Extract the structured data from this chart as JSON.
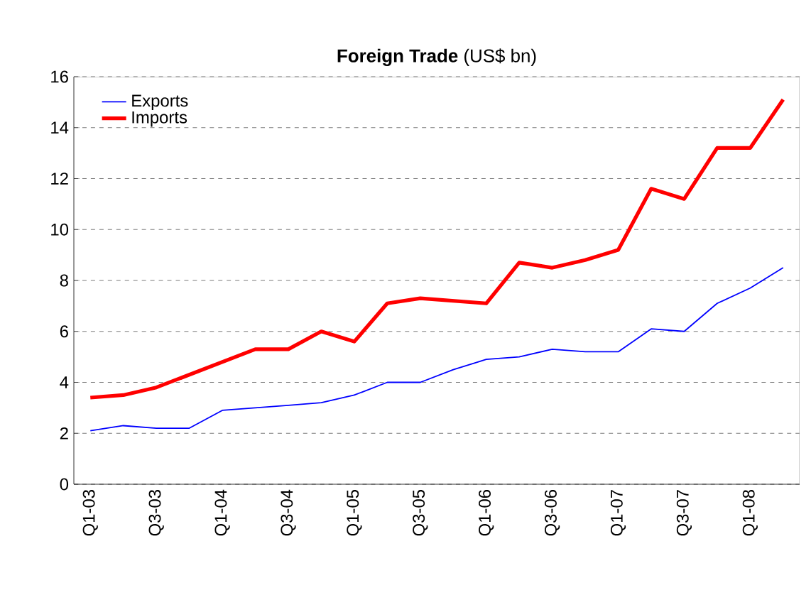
{
  "chart_data": {
    "type": "line",
    "title": "**Foreign Trade** (US$ bn)",
    "categories": [
      "Q1-03",
      null,
      "Q3-03",
      null,
      "Q1-04",
      null,
      "Q3-04",
      null,
      "Q1-05",
      null,
      "Q3-05",
      null,
      "Q1-06",
      null,
      "Q3-06",
      null,
      "Q1-07",
      null,
      "Q3-07",
      null,
      "Q1-08",
      null
    ],
    "series": [
      {
        "name": "Exports",
        "color": "#0000ff",
        "values": [
          2.1,
          2.3,
          2.2,
          2.2,
          2.9,
          3.0,
          3.1,
          3.2,
          3.5,
          4.0,
          4.0,
          4.5,
          4.9,
          5.0,
          5.3,
          5.2,
          5.2,
          6.1,
          6.0,
          7.1,
          7.7,
          8.5
        ]
      },
      {
        "name": "Imports",
        "color": "#ff0000",
        "values": [
          3.4,
          3.5,
          3.8,
          4.3,
          4.8,
          5.3,
          5.3,
          6.0,
          5.6,
          7.1,
          7.3,
          7.2,
          7.1,
          8.7,
          8.5,
          8.8,
          9.2,
          11.6,
          11.2,
          13.2,
          13.2,
          15.1
        ]
      }
    ],
    "ylim": [
      0,
      16
    ],
    "yticks": [
      0,
      2,
      4,
      6,
      8,
      10,
      12,
      14,
      16
    ],
    "grid": "y",
    "legend": "top left",
    "marker": "none",
    "line_style": "solid"
  }
}
